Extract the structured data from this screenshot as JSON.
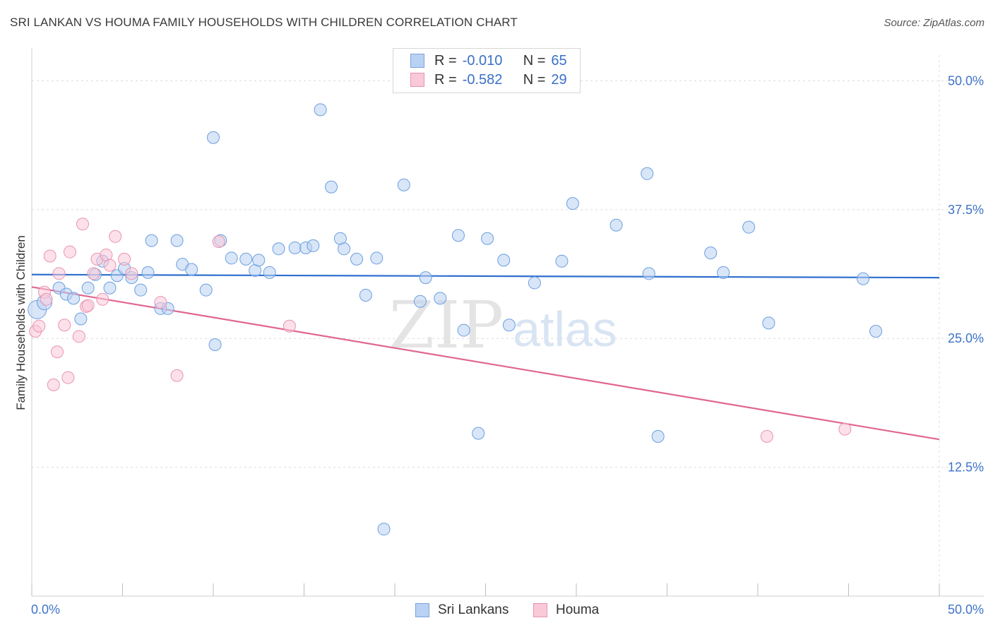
{
  "title": "SRI LANKAN VS HOUMA FAMILY HOUSEHOLDS WITH CHILDREN CORRELATION CHART",
  "source": "Source: ZipAtlas.com",
  "watermark": {
    "zip": "ZIP",
    "atlas": "atlas"
  },
  "legend": {
    "r_label": "R =",
    "n_label": "N =",
    "series": [
      {
        "name": "Sri Lankans",
        "r": "-0.010",
        "n": "65",
        "fill": "#b9d1f3",
        "stroke": "#7aa4dd"
      },
      {
        "name": "Houma",
        "r": "-0.582",
        "n": "29",
        "fill": "#f9c9d8",
        "stroke": "#e893b1"
      }
    ]
  },
  "chart_data": {
    "type": "scatter",
    "title": "SRI LANKAN VS HOUMA FAMILY HOUSEHOLDS WITH CHILDREN CORRELATION CHART",
    "xlabel": "",
    "ylabel": "Family Households with Children",
    "xlim": [
      0,
      50
    ],
    "ylim": [
      0,
      52.5
    ],
    "x_tick_labels": [
      "0.0%",
      "50.0%"
    ],
    "y_ticks": [
      12.5,
      25.0,
      37.5,
      50.0
    ],
    "y_tick_labels": [
      "12.5%",
      "25.0%",
      "37.5%",
      "50.0%"
    ],
    "grid": true,
    "legend_position": "top-center",
    "series": [
      {
        "name": "Sri Lankans",
        "color": "#6a9fe0",
        "trend": {
          "x": [
            0,
            50
          ],
          "y": [
            31.2,
            30.9
          ],
          "color": "#2f6fce"
        },
        "points": [
          [
            0.3,
            27.8
          ],
          [
            0.7,
            28.5
          ],
          [
            1.5,
            29.9
          ],
          [
            1.9,
            29.3
          ],
          [
            2.3,
            28.9
          ],
          [
            2.7,
            26.9
          ],
          [
            3.1,
            29.9
          ],
          [
            3.5,
            31.2
          ],
          [
            3.9,
            32.5
          ],
          [
            4.3,
            29.9
          ],
          [
            4.7,
            31.1
          ],
          [
            5.1,
            31.8
          ],
          [
            5.5,
            30.9
          ],
          [
            6.0,
            29.7
          ],
          [
            6.4,
            31.4
          ],
          [
            6.6,
            34.5
          ],
          [
            7.1,
            27.9
          ],
          [
            7.5,
            27.9
          ],
          [
            8.0,
            34.5
          ],
          [
            8.3,
            32.2
          ],
          [
            8.8,
            31.7
          ],
          [
            9.6,
            29.7
          ],
          [
            10.0,
            44.5
          ],
          [
            10.1,
            24.4
          ],
          [
            10.4,
            34.5
          ],
          [
            11.0,
            32.8
          ],
          [
            11.8,
            32.7
          ],
          [
            12.3,
            31.6
          ],
          [
            12.5,
            32.6
          ],
          [
            13.1,
            31.4
          ],
          [
            13.6,
            33.7
          ],
          [
            14.5,
            33.8
          ],
          [
            15.1,
            33.8
          ],
          [
            15.5,
            34.0
          ],
          [
            15.9,
            47.2
          ],
          [
            16.5,
            39.7
          ],
          [
            17.0,
            34.7
          ],
          [
            17.2,
            33.7
          ],
          [
            17.9,
            32.7
          ],
          [
            18.4,
            29.2
          ],
          [
            19.0,
            32.8
          ],
          [
            19.4,
            6.5
          ],
          [
            20.5,
            39.9
          ],
          [
            21.4,
            28.6
          ],
          [
            21.7,
            30.9
          ],
          [
            22.5,
            28.9
          ],
          [
            23.5,
            35.0
          ],
          [
            23.8,
            25.8
          ],
          [
            24.6,
            15.8
          ],
          [
            25.1,
            34.7
          ],
          [
            26.0,
            32.6
          ],
          [
            26.3,
            26.3
          ],
          [
            27.7,
            30.4
          ],
          [
            29.2,
            32.5
          ],
          [
            29.8,
            38.1
          ],
          [
            32.2,
            36.0
          ],
          [
            33.9,
            41.0
          ],
          [
            34.0,
            31.3
          ],
          [
            34.5,
            15.5
          ],
          [
            37.4,
            33.3
          ],
          [
            38.1,
            31.4
          ],
          [
            39.5,
            35.8
          ],
          [
            40.6,
            26.5
          ],
          [
            45.8,
            30.8
          ],
          [
            46.5,
            25.7
          ]
        ]
      },
      {
        "name": "Houma",
        "color": "#e893b1",
        "trend": {
          "x": [
            0,
            50
          ],
          "y": [
            30.0,
            15.2
          ],
          "color": "#e06690"
        },
        "points": [
          [
            0.2,
            25.7
          ],
          [
            0.4,
            26.2
          ],
          [
            0.7,
            29.5
          ],
          [
            0.8,
            28.8
          ],
          [
            1.0,
            33.0
          ],
          [
            1.2,
            20.5
          ],
          [
            1.4,
            23.7
          ],
          [
            1.5,
            31.3
          ],
          [
            1.8,
            26.3
          ],
          [
            2.0,
            21.2
          ],
          [
            2.1,
            33.4
          ],
          [
            2.6,
            25.2
          ],
          [
            2.8,
            36.1
          ],
          [
            3.0,
            28.1
          ],
          [
            3.1,
            28.2
          ],
          [
            3.4,
            31.3
          ],
          [
            3.6,
            32.7
          ],
          [
            3.9,
            28.8
          ],
          [
            4.1,
            33.1
          ],
          [
            4.3,
            32.1
          ],
          [
            4.6,
            34.9
          ],
          [
            5.1,
            32.7
          ],
          [
            5.5,
            31.3
          ],
          [
            7.1,
            28.5
          ],
          [
            8.0,
            21.4
          ],
          [
            10.3,
            34.4
          ],
          [
            14.2,
            26.2
          ],
          [
            40.5,
            15.5
          ],
          [
            44.8,
            16.2
          ]
        ]
      }
    ]
  }
}
